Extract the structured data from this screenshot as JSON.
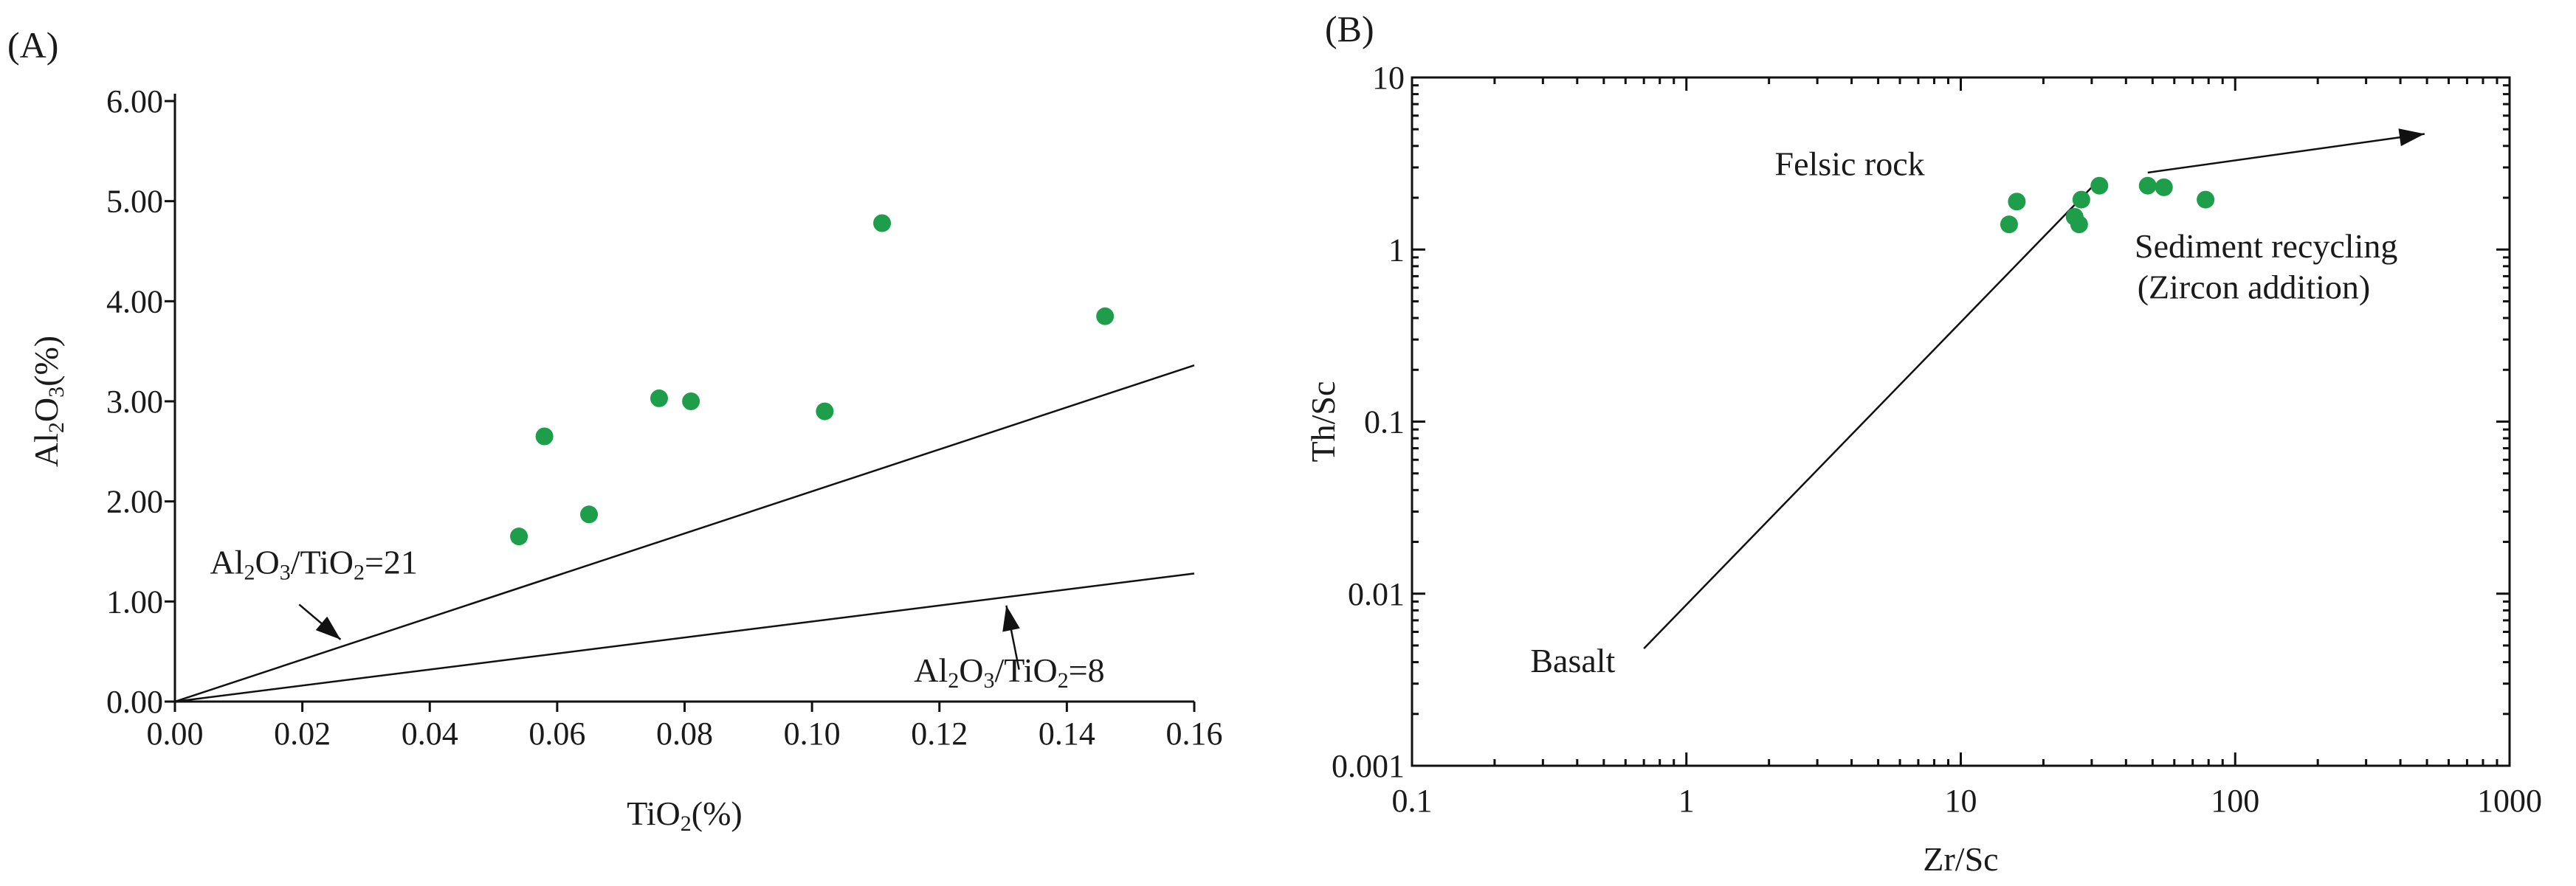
{
  "chart_data": [
    {
      "id": "A",
      "type": "scatter",
      "panel_label": "(A)",
      "xlabel": {
        "parts": [
          {
            "t": "TiO"
          },
          {
            "t": "2",
            "sub": true
          },
          {
            "t": "(%)"
          }
        ]
      },
      "ylabel": {
        "parts": [
          {
            "t": "Al"
          },
          {
            "t": "2",
            "sub": true
          },
          {
            "t": "O"
          },
          {
            "t": "3",
            "sub": true
          },
          {
            "t": "(%)"
          }
        ]
      },
      "xlim": [
        0,
        0.16
      ],
      "ylim": [
        0,
        6
      ],
      "xticks": [
        0,
        0.02,
        0.04,
        0.06,
        0.08,
        0.1,
        0.12,
        0.14,
        0.16
      ],
      "xtick_labels": [
        "0.00",
        "0.02",
        "0.04",
        "0.06",
        "0.08",
        "0.10",
        "0.12",
        "0.14",
        "0.16"
      ],
      "yticks": [
        0,
        1,
        2,
        3,
        4,
        5,
        6
      ],
      "ytick_labels": [
        "0.00",
        "1.00",
        "2.00",
        "3.00",
        "4.00",
        "5.00",
        "6.00"
      ],
      "marker_color": "#1e9e4a",
      "points": [
        {
          "x": 0.054,
          "y": 1.65
        },
        {
          "x": 0.058,
          "y": 2.65
        },
        {
          "x": 0.065,
          "y": 1.87
        },
        {
          "x": 0.076,
          "y": 3.03
        },
        {
          "x": 0.081,
          "y": 3.0
        },
        {
          "x": 0.102,
          "y": 2.9
        },
        {
          "x": 0.111,
          "y": 4.78
        },
        {
          "x": 0.146,
          "y": 3.85
        }
      ],
      "reference_lines": [
        {
          "slope": 21,
          "label": {
            "parts": [
              {
                "t": "Al"
              },
              {
                "t": "2",
                "sub": true
              },
              {
                "t": "O"
              },
              {
                "t": "3",
                "sub": true
              },
              {
                "t": "/TiO"
              },
              {
                "t": "2",
                "sub": true
              },
              {
                "t": "=21"
              }
            ]
          },
          "label_pos": [
            0.0055,
            1.28
          ],
          "arrow_from": [
            0.0195,
            0.97
          ],
          "arrow_to": [
            0.026,
            0.62
          ]
        },
        {
          "slope": 8,
          "label": {
            "parts": [
              {
                "t": "Al"
              },
              {
                "t": "2",
                "sub": true
              },
              {
                "t": "O"
              },
              {
                "t": "3",
                "sub": true
              },
              {
                "t": "/TiO"
              },
              {
                "t": "2",
                "sub": true
              },
              {
                "t": "=8"
              }
            ]
          },
          "label_pos": [
            0.116,
            0.2
          ],
          "arrow_from": [
            0.1325,
            0.32
          ],
          "arrow_to": [
            0.1305,
            0.96
          ]
        }
      ]
    },
    {
      "id": "B",
      "type": "scatter",
      "panel_label": "(B)",
      "xlabel": {
        "parts": [
          {
            "t": "Zr/Sc"
          }
        ]
      },
      "ylabel": {
        "parts": [
          {
            "t": "Th/Sc"
          }
        ]
      },
      "xscale": "log",
      "yscale": "log",
      "xlim": [
        0.1,
        1000
      ],
      "ylim": [
        0.001,
        10
      ],
      "xticks": [
        0.1,
        1,
        10,
        100,
        1000
      ],
      "xtick_labels": [
        "0.1",
        "1",
        "10",
        "100",
        "1000"
      ],
      "yticks": [
        0.001,
        0.01,
        0.1,
        1,
        10
      ],
      "ytick_labels": [
        "0.001",
        "0.01",
        "0.1",
        "1",
        "10"
      ],
      "marker_color": "#1e9e4a",
      "points": [
        {
          "x": 15,
          "y": 1.4
        },
        {
          "x": 16,
          "y": 1.9
        },
        {
          "x": 26,
          "y": 1.55
        },
        {
          "x": 27,
          "y": 1.4
        },
        {
          "x": 27.5,
          "y": 1.95
        },
        {
          "x": 32,
          "y": 2.35
        },
        {
          "x": 48,
          "y": 2.35
        },
        {
          "x": 55,
          "y": 2.3
        },
        {
          "x": 78,
          "y": 1.95
        }
      ],
      "annotations": [
        {
          "text": "Felsic rock",
          "pos": [
            2.1,
            2.7
          ]
        },
        {
          "text": "Sediment recycling",
          "pos": [
            43,
            0.9
          ]
        },
        {
          "text": "(Zircon addition)",
          "pos": [
            44,
            0.52
          ]
        },
        {
          "text": "Basalt",
          "pos": [
            0.27,
            0.0035
          ]
        }
      ],
      "trend_line": {
        "from": [
          0.7,
          0.0048
        ],
        "to": [
          30,
          2.3
        ]
      },
      "arrow": {
        "from": [
          48,
          2.8
        ],
        "to": [
          490,
          4.7
        ]
      }
    }
  ]
}
